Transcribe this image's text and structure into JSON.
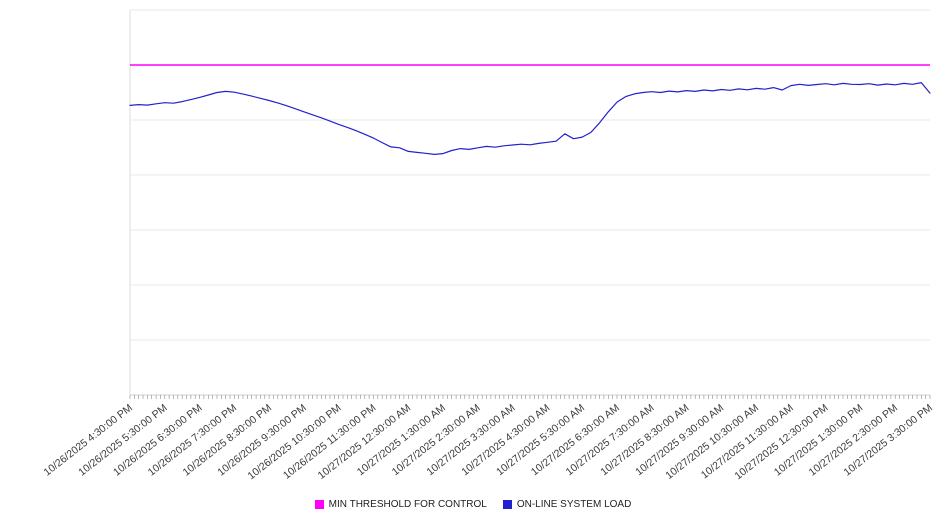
{
  "chart_data": {
    "type": "line",
    "title": "",
    "xlabel": "",
    "ylabel": "",
    "grid": true,
    "grid_color": "#e9e9e9",
    "legend_position": "bottom-center",
    "ylim": [
      0,
      140
    ],
    "y_gridline_step": 20,
    "x_hours_span": 23,
    "interval_hours": 0.25,
    "x_minor_ticks_per_hour": 8,
    "x_tick_labels": [
      "10/26/2025 4:30:00 PM",
      "10/26/2025 5:30:00 PM",
      "10/26/2025 6:30:00 PM",
      "10/26/2025 7:30:00 PM",
      "10/26/2025 8:30:00 PM",
      "10/26/2025 9:30:00 PM",
      "10/26/2025 10:30:00 PM",
      "10/26/2025 11:30:00 PM",
      "10/27/2025 12:30:00 AM",
      "10/27/2025 1:30:00 AM",
      "10/27/2025 2:30:00 AM",
      "10/27/2025 3:30:00 AM",
      "10/27/2025 4:30:00 AM",
      "10/27/2025 5:30:00 AM",
      "10/27/2025 6:30:00 AM",
      "10/27/2025 7:30:00 AM",
      "10/27/2025 8:30:00 AM",
      "10/27/2025 9:30:00 AM",
      "10/27/2025 10:30:00 AM",
      "10/27/2025 11:30:00 AM",
      "10/27/2025 12:30:00 PM",
      "10/27/2025 1:30:00 PM",
      "10/27/2025 2:30:00 PM",
      "10/27/2025 3:30:00 PM"
    ],
    "series": [
      {
        "name": "MIN THRESHOLD FOR CONTROL",
        "type": "threshold",
        "color": "#ff00ff",
        "value": 120
      },
      {
        "name": "ON-LINE SYSTEM LOAD",
        "type": "line",
        "color": "#2222cc",
        "values": [
          105.3,
          105.6,
          105.4,
          105.9,
          106.3,
          106.1,
          106.7,
          107.4,
          108.2,
          109.1,
          110.0,
          110.4,
          110.1,
          109.4,
          108.7,
          107.9,
          107.1,
          106.2,
          105.2,
          104.1,
          103.0,
          101.9,
          100.8,
          99.6,
          98.4,
          97.3,
          96.1,
          94.8,
          93.4,
          91.8,
          90.2,
          89.9,
          88.6,
          88.2,
          87.9,
          87.5,
          87.8,
          88.9,
          89.6,
          89.3,
          89.9,
          90.4,
          90.1,
          90.6,
          90.9,
          91.2,
          91.0,
          91.5,
          91.9,
          92.3,
          95.0,
          93.2,
          93.8,
          95.5,
          99.0,
          103.0,
          106.5,
          108.5,
          109.5,
          110.0,
          110.3,
          110.0,
          110.5,
          110.2,
          110.7,
          110.4,
          110.9,
          110.6,
          111.1,
          110.8,
          111.3,
          111.0,
          111.5,
          111.2,
          111.8,
          110.9,
          112.5,
          113.0,
          112.6,
          112.9,
          113.2,
          112.8,
          113.3,
          113.0,
          112.9,
          113.2,
          112.7,
          113.1,
          112.8,
          113.3,
          113.0,
          113.6,
          109.8
        ]
      }
    ]
  }
}
